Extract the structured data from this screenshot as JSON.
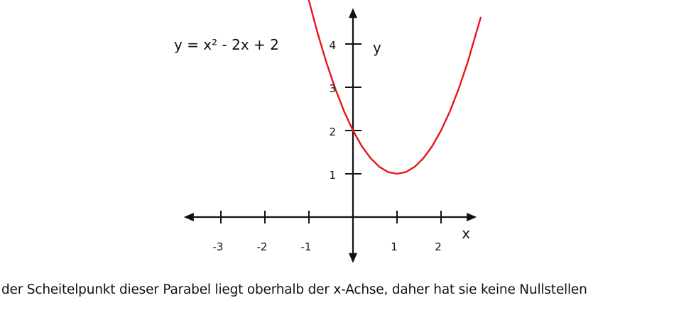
{
  "chart_data": {
    "type": "line",
    "equation": "y = x² - 2x + 2",
    "xlabel": "x",
    "ylabel": "y",
    "x_ticks": [
      -3,
      -2,
      -1,
      1,
      2
    ],
    "x_tick_labels": [
      "-3",
      "-2",
      "-1",
      "1",
      "2"
    ],
    "y_ticks": [
      1,
      2,
      3,
      4
    ],
    "y_tick_labels": [
      "1",
      "2",
      "3",
      "4"
    ],
    "xlim": [
      -3.6,
      2.6
    ],
    "ylim": [
      -0.8,
      4.6
    ],
    "grid": false,
    "series": [
      {
        "color": "#e8141c",
        "x": [
          -1,
          -0.8,
          -0.6,
          -0.4,
          -0.2,
          0,
          0.2,
          0.4,
          0.6,
          0.8,
          1,
          1.2,
          1.4,
          1.6,
          1.8,
          2,
          2.2,
          2.4,
          2.6,
          2.9
        ],
        "y": [
          5,
          4.24,
          3.56,
          2.96,
          2.44,
          2,
          1.64,
          1.36,
          1.16,
          1.04,
          1,
          1.04,
          1.16,
          1.36,
          1.64,
          2,
          2.44,
          2.96,
          3.56,
          4.61
        ]
      }
    ]
  },
  "caption": "der Scheitelpunkt dieser Parabel liegt oberhalb der x-Achse, daher hat sie keine Nullstellen"
}
